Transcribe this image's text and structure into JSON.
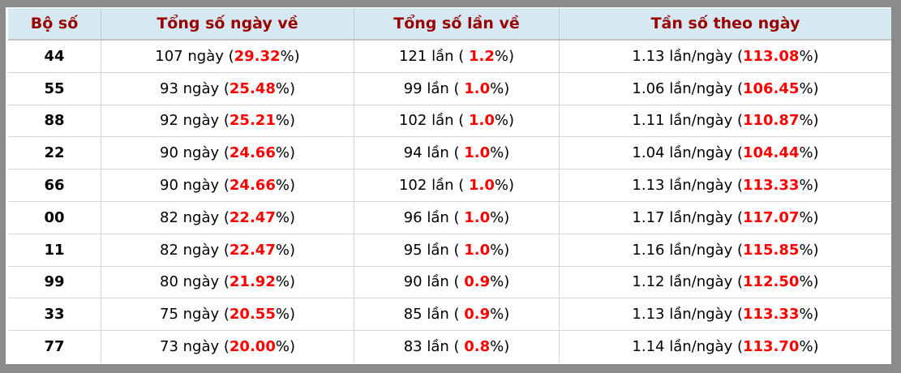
{
  "table": {
    "columns": [
      {
        "label": "Bộ số"
      },
      {
        "label": "Tổng số ngày về"
      },
      {
        "label": "Tổng số lần về"
      },
      {
        "label": "Tần số theo ngày"
      }
    ],
    "templates": {
      "days": "{n} ngày (",
      "times": "{n} lần ( ",
      "freq": "{n} lần/ngày (",
      "suffix": "%)"
    },
    "rows": [
      {
        "pair": "44",
        "days": "107",
        "days_pct": "29.32",
        "times": "121",
        "times_pct": "1.2",
        "freq": "1.13",
        "freq_pct": "113.08"
      },
      {
        "pair": "55",
        "days": "93",
        "days_pct": "25.48",
        "times": "99",
        "times_pct": "1.0",
        "freq": "1.06",
        "freq_pct": "106.45"
      },
      {
        "pair": "88",
        "days": "92",
        "days_pct": "25.21",
        "times": "102",
        "times_pct": "1.0",
        "freq": "1.11",
        "freq_pct": "110.87"
      },
      {
        "pair": "22",
        "days": "90",
        "days_pct": "24.66",
        "times": "94",
        "times_pct": "1.0",
        "freq": "1.04",
        "freq_pct": "104.44"
      },
      {
        "pair": "66",
        "days": "90",
        "days_pct": "24.66",
        "times": "102",
        "times_pct": "1.0",
        "freq": "1.13",
        "freq_pct": "113.33"
      },
      {
        "pair": "00",
        "days": "82",
        "days_pct": "22.47",
        "times": "96",
        "times_pct": "1.0",
        "freq": "1.17",
        "freq_pct": "117.07"
      },
      {
        "pair": "11",
        "days": "82",
        "days_pct": "22.47",
        "times": "95",
        "times_pct": "1.0",
        "freq": "1.16",
        "freq_pct": "115.85"
      },
      {
        "pair": "99",
        "days": "80",
        "days_pct": "21.92",
        "times": "90",
        "times_pct": "0.9",
        "freq": "1.12",
        "freq_pct": "112.50"
      },
      {
        "pair": "33",
        "days": "75",
        "days_pct": "20.55",
        "times": "85",
        "times_pct": "0.9",
        "freq": "1.13",
        "freq_pct": "113.33"
      },
      {
        "pair": "77",
        "days": "73",
        "days_pct": "20.00",
        "times": "83",
        "times_pct": "0.8",
        "freq": "1.14",
        "freq_pct": "113.70"
      }
    ]
  },
  "colors": {
    "frame_gray": "#8b8b8b",
    "header_bg": "#d6e9f3",
    "header_text": "#990000",
    "highlight_red": "#fe0000",
    "grid_line": "#d6d6d6"
  }
}
